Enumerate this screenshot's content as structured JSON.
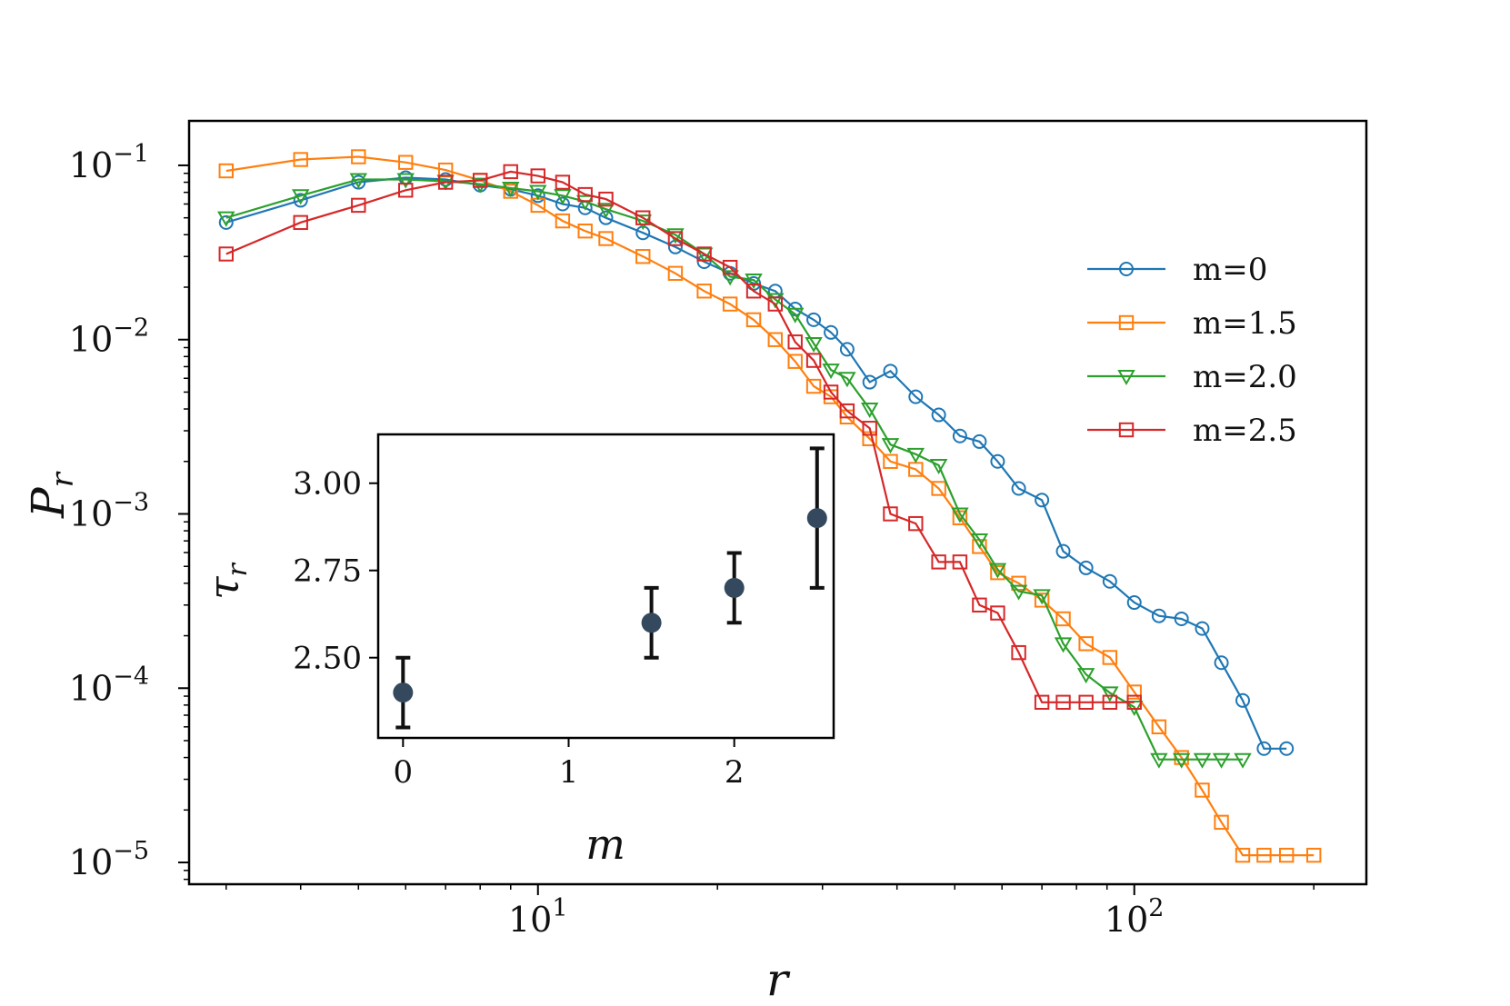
{
  "chart_data": [
    {
      "type": "line",
      "scale": {
        "x": "log",
        "y": "log"
      },
      "xlabel": "r",
      "ylabel": "P_r",
      "xlim": [
        2.6,
        245
      ],
      "ylim": [
        7.5e-06,
        0.18
      ],
      "x_ticks": [
        {
          "value": 10,
          "base": "10",
          "exp": "1"
        },
        {
          "value": 100,
          "base": "10",
          "exp": "2"
        }
      ],
      "y_ticks": [
        {
          "value": 0.1,
          "base": "10",
          "exp": "−1"
        },
        {
          "value": 0.01,
          "base": "10",
          "exp": "−2"
        },
        {
          "value": 0.001,
          "base": "10",
          "exp": "−3"
        },
        {
          "value": 0.0001,
          "base": "10",
          "exp": "−4"
        },
        {
          "value": 1e-05,
          "base": "10",
          "exp": "−5"
        }
      ],
      "legend_position": "right",
      "series": [
        {
          "name": "m=0",
          "color": "#1f77b4",
          "marker": "circle",
          "x": [
            3,
            4,
            5,
            6,
            7,
            8,
            9,
            10,
            11,
            12,
            13,
            15,
            17,
            19,
            21,
            23,
            25,
            27,
            29,
            31,
            33,
            36,
            39,
            43,
            47,
            51,
            55,
            59,
            64,
            70,
            76,
            83,
            91,
            100,
            110,
            120,
            130,
            140,
            152,
            165,
            180
          ],
          "y": [
            0.047,
            0.063,
            0.08,
            0.085,
            0.083,
            0.077,
            0.073,
            0.067,
            0.06,
            0.057,
            0.05,
            0.041,
            0.034,
            0.028,
            0.024,
            0.021,
            0.019,
            0.015,
            0.013,
            0.011,
            0.0088,
            0.0057,
            0.0066,
            0.0047,
            0.0037,
            0.0028,
            0.0026,
            0.002,
            0.0014,
            0.0012,
            0.00061,
            0.00049,
            0.00041,
            0.00031,
            0.00026,
            0.00025,
            0.00022,
            0.00014,
            8.5e-05,
            4.5e-05,
            4.5e-05
          ]
        },
        {
          "name": "m=1.5",
          "color": "#ff7f0e",
          "marker": "square",
          "x": [
            3,
            4,
            5,
            6,
            7,
            8,
            9,
            10,
            11,
            12,
            13,
            15,
            17,
            19,
            21,
            23,
            25,
            27,
            29,
            31,
            33,
            36,
            39,
            43,
            47,
            51,
            55,
            59,
            64,
            70,
            76,
            83,
            91,
            100,
            110,
            120,
            130,
            140,
            152,
            165,
            180,
            200
          ],
          "y": [
            0.093,
            0.108,
            0.112,
            0.104,
            0.094,
            0.082,
            0.071,
            0.059,
            0.048,
            0.042,
            0.038,
            0.03,
            0.024,
            0.019,
            0.016,
            0.013,
            0.01,
            0.0075,
            0.0054,
            0.0047,
            0.0036,
            0.0027,
            0.002,
            0.0018,
            0.0014,
            0.00095,
            0.00065,
            0.00046,
            0.0004,
            0.00032,
            0.00025,
            0.00018,
            0.00015,
            9.5e-05,
            6e-05,
            4e-05,
            2.6e-05,
            1.7e-05,
            1.1e-05,
            1.1e-05,
            1.1e-05,
            1.1e-05
          ]
        },
        {
          "name": "m=2.0",
          "color": "#2ca02c",
          "marker": "triangle-down",
          "x": [
            3,
            4,
            5,
            6,
            7,
            8,
            9,
            10,
            11,
            12,
            13,
            15,
            17,
            19,
            21,
            23,
            25,
            27,
            29,
            31,
            33,
            36,
            39,
            43,
            47,
            51,
            55,
            59,
            64,
            70,
            76,
            83,
            91,
            100,
            110,
            120,
            130,
            140,
            152
          ],
          "y": [
            0.05,
            0.067,
            0.083,
            0.083,
            0.081,
            0.078,
            0.074,
            0.071,
            0.067,
            0.062,
            0.056,
            0.048,
            0.04,
            0.031,
            0.023,
            0.022,
            0.017,
            0.014,
            0.0095,
            0.0067,
            0.006,
            0.004,
            0.0025,
            0.0022,
            0.0019,
            0.001,
            0.00071,
            0.00048,
            0.00036,
            0.00034,
            0.00018,
            0.00012,
            9.4e-05,
            7.8e-05,
            3.9e-05,
            3.9e-05,
            3.9e-05,
            3.9e-05,
            3.9e-05
          ]
        },
        {
          "name": "m=2.5",
          "color": "#d62728",
          "marker": "square",
          "x": [
            3,
            4,
            5,
            6,
            7,
            8,
            9,
            10,
            11,
            12,
            13,
            15,
            17,
            19,
            21,
            23,
            25,
            27,
            29,
            31,
            33,
            36,
            39,
            43,
            47,
            51,
            55,
            59,
            64,
            70,
            76,
            83,
            91,
            100
          ],
          "y": [
            0.031,
            0.047,
            0.059,
            0.072,
            0.08,
            0.082,
            0.092,
            0.087,
            0.08,
            0.068,
            0.064,
            0.05,
            0.038,
            0.031,
            0.026,
            0.019,
            0.016,
            0.0097,
            0.0076,
            0.005,
            0.0039,
            0.0031,
            0.001,
            0.00088,
            0.00053,
            0.00053,
            0.0003,
            0.00027,
            0.00016,
            8.3e-05,
            8.3e-05,
            8.3e-05,
            8.3e-05,
            8.3e-05
          ]
        }
      ]
    },
    {
      "type": "scatter",
      "inset": true,
      "xlabel": "m",
      "ylabel": "τ_r",
      "xlim": [
        -0.15,
        2.6
      ],
      "ylim": [
        2.27,
        3.14
      ],
      "x_ticks": [
        "0",
        "1",
        "2"
      ],
      "y_ticks": [
        "2.50",
        "2.75",
        "3.00"
      ],
      "x": [
        0,
        1.5,
        2.0,
        2.5
      ],
      "y": [
        2.4,
        2.6,
        2.7,
        2.9
      ],
      "error": [
        0.1,
        0.1,
        0.1,
        0.2
      ],
      "color": "#34495e"
    }
  ]
}
